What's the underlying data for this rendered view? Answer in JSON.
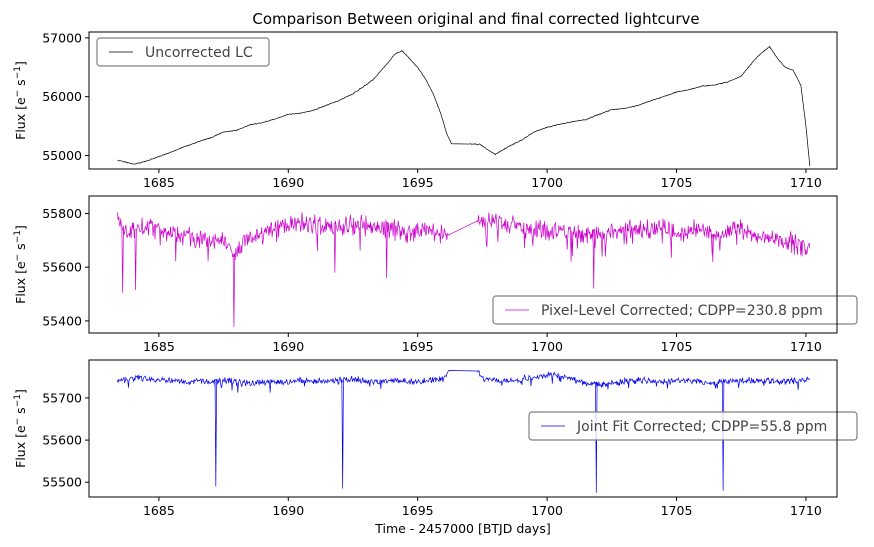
{
  "title": "Comparison Between original and final corrected lightcurve",
  "colors": {
    "uncorrected": "#000000",
    "pixel_level": "#cc00cc",
    "joint_fit": "#0000ee"
  },
  "chart_data": [
    {
      "type": "line",
      "ylabel_main": "Flux [e",
      "ylabel_sup1": "−",
      "ylabel_mid": "s",
      "ylabel_sup2": "−1",
      "ylabel_end": "]",
      "xlim": [
        1682.3,
        1711.2
      ],
      "ylim": [
        54770,
        57100
      ],
      "xticks": [
        1685,
        1690,
        1695,
        1700,
        1705,
        1710
      ],
      "yticks": [
        55000,
        56000,
        57000
      ],
      "series": [
        {
          "name": "Uncorrected LC",
          "color": "#000000",
          "legend": "upper-left",
          "x": [
            1683.4,
            1683.7,
            1684.0,
            1684.5,
            1685.0,
            1685.5,
            1686.0,
            1686.5,
            1687.0,
            1687.5,
            1688.0,
            1688.5,
            1689.0,
            1689.5,
            1690.0,
            1690.5,
            1691.0,
            1691.5,
            1692.0,
            1692.5,
            1693.0,
            1693.3,
            1693.6,
            1693.9,
            1694.1,
            1694.4,
            1694.7,
            1695.0,
            1695.3,
            1695.6,
            1695.9,
            1696.1,
            1696.3,
            1697.0,
            1697.4,
            1697.7,
            1698.0,
            1698.5,
            1699.0,
            1699.5,
            1700.0,
            1700.5,
            1701.0,
            1701.5,
            1702.0,
            1702.5,
            1703.0,
            1703.5,
            1704.0,
            1704.5,
            1705.0,
            1705.5,
            1706.0,
            1706.5,
            1707.0,
            1707.5,
            1708.0,
            1708.3,
            1708.6,
            1708.9,
            1709.2,
            1709.5,
            1709.8,
            1710.0,
            1710.15
          ],
          "y": [
            54920,
            54890,
            54850,
            54900,
            54980,
            55060,
            55150,
            55230,
            55300,
            55400,
            55430,
            55520,
            55560,
            55620,
            55700,
            55720,
            55770,
            55860,
            55940,
            56050,
            56200,
            56300,
            56450,
            56600,
            56720,
            56780,
            56640,
            56500,
            56300,
            56050,
            55700,
            55400,
            55200,
            55200,
            55190,
            55100,
            55020,
            55150,
            55260,
            55400,
            55480,
            55530,
            55580,
            55610,
            55700,
            55780,
            55800,
            55850,
            55930,
            56000,
            56080,
            56120,
            56180,
            56200,
            56250,
            56350,
            56620,
            56750,
            56850,
            56650,
            56500,
            56450,
            56200,
            55500,
            54820
          ]
        }
      ]
    },
    {
      "type": "line",
      "ylabel_main": "Flux [e",
      "ylabel_sup1": "−",
      "ylabel_mid": "s",
      "ylabel_sup2": "−1",
      "ylabel_end": "]",
      "xlim": [
        1682.3,
        1711.2
      ],
      "ylim": [
        55355,
        55865
      ],
      "xticks": [
        1685,
        1690,
        1695,
        1700,
        1705,
        1710
      ],
      "yticks": [
        55400,
        55600,
        55800
      ],
      "series": [
        {
          "name": "Pixel-Level Corrected; CDPP=230.8 ppm",
          "color": "#cc00cc",
          "legend": "lower-right",
          "x": [
            1683.4,
            1683.6,
            1683.8,
            1684.0,
            1684.4,
            1684.9,
            1685.5,
            1686.0,
            1686.5,
            1687.0,
            1687.5,
            1687.9,
            1688.3,
            1688.8,
            1689.3,
            1690.0,
            1690.5,
            1691.0,
            1691.5,
            1692.0,
            1692.5,
            1693.0,
            1693.5,
            1694.0,
            1694.5,
            1695.0,
            1695.5,
            1696.0,
            1696.2,
            1697.3,
            1697.6,
            1698.0,
            1698.5,
            1699.0,
            1699.5,
            1700.0,
            1700.5,
            1701.0,
            1701.5,
            1702.0,
            1702.5,
            1703.0,
            1703.5,
            1704.0,
            1704.5,
            1705.0,
            1705.5,
            1706.0,
            1706.5,
            1707.0,
            1707.5,
            1708.0,
            1708.5,
            1709.0,
            1709.5,
            1710.0,
            1710.15
          ],
          "y": [
            55800,
            55760,
            55720,
            55730,
            55750,
            55740,
            55735,
            55720,
            55700,
            55690,
            55700,
            55640,
            55700,
            55720,
            55740,
            55760,
            55770,
            55760,
            55750,
            55740,
            55760,
            55770,
            55750,
            55740,
            55730,
            55740,
            55735,
            55730,
            55720,
            55790,
            55760,
            55770,
            55760,
            55750,
            55740,
            55730,
            55735,
            55730,
            55720,
            55710,
            55730,
            55740,
            55745,
            55740,
            55750,
            55730,
            55740,
            55750,
            55720,
            55730,
            55740,
            55720,
            55710,
            55700,
            55690,
            55680,
            55670
          ],
          "dips": [
            [
              1683.6,
              55505
            ],
            [
              1684.1,
              55515
            ],
            [
              1687.9,
              55378
            ],
            [
              1691.8,
              55580
            ],
            [
              1693.8,
              55560
            ],
            [
              1701.8,
              55520
            ],
            [
              1706.4,
              55620
            ]
          ]
        }
      ]
    },
    {
      "type": "line",
      "ylabel_main": "Flux [e",
      "ylabel_sup1": "−",
      "ylabel_mid": "s",
      "ylabel_sup2": "−1",
      "ylabel_end": "]",
      "xlabel": "Time - 2457000 [BTJD days]",
      "xlim": [
        1682.3,
        1711.2
      ],
      "ylim": [
        55465,
        55790
      ],
      "xticks": [
        1685,
        1690,
        1695,
        1700,
        1705,
        1710
      ],
      "yticks": [
        55500,
        55600,
        55700
      ],
      "series": [
        {
          "name": "Joint Fit Corrected; CDPP=55.8 ppm",
          "color": "#0000ee",
          "legend": "center-right",
          "x": [
            1683.4,
            1683.8,
            1684.3,
            1684.8,
            1685.5,
            1686.0,
            1686.5,
            1687.0,
            1687.5,
            1688.0,
            1688.5,
            1689.0,
            1689.5,
            1690.0,
            1690.5,
            1691.0,
            1691.5,
            1692.0,
            1692.5,
            1693.0,
            1693.5,
            1694.0,
            1694.5,
            1695.0,
            1695.5,
            1696.0,
            1696.2,
            1697.3,
            1697.6,
            1698.0,
            1698.5,
            1699.0,
            1699.5,
            1700.0,
            1700.5,
            1701.0,
            1701.5,
            1702.0,
            1702.5,
            1703.0,
            1703.5,
            1704.0,
            1704.5,
            1705.0,
            1705.5,
            1706.0,
            1706.5,
            1707.0,
            1707.5,
            1708.0,
            1708.5,
            1709.0,
            1709.5,
            1710.0,
            1710.15
          ],
          "y": [
            55740,
            55745,
            55748,
            55745,
            55742,
            55738,
            55740,
            55738,
            55742,
            55738,
            55735,
            55738,
            55740,
            55738,
            55742,
            55740,
            55738,
            55742,
            55745,
            55740,
            55738,
            55742,
            55740,
            55738,
            55742,
            55745,
            55765,
            55768,
            55742,
            55740,
            55742,
            55745,
            55748,
            55755,
            55752,
            55745,
            55735,
            55730,
            55735,
            55740,
            55742,
            55740,
            55738,
            55740,
            55742,
            55738,
            55736,
            55740,
            55742,
            55742,
            55740,
            55738,
            55740,
            55742,
            55745
          ],
          "dips": [
            [
              1687.2,
              55490
            ],
            [
              1692.1,
              55485
            ],
            [
              1701.9,
              55475
            ],
            [
              1706.8,
              55480
            ]
          ]
        }
      ]
    }
  ]
}
